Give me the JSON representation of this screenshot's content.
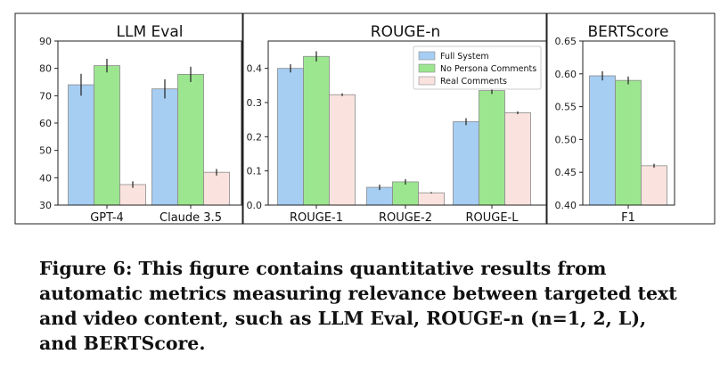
{
  "chart_data": [
    {
      "type": "bar",
      "title": "LLM Eval",
      "categories": [
        "GPT-4",
        "Claude 3.5"
      ],
      "ylim": [
        30,
        90
      ],
      "yticks": [
        "30",
        "40",
        "50",
        "60",
        "70",
        "80",
        "90"
      ],
      "series": [
        {
          "name": "Full System",
          "values": [
            74,
            72.5
          ],
          "errors": [
            4,
            3.5
          ]
        },
        {
          "name": "No Persona Comments",
          "values": [
            81,
            77.8
          ],
          "errors": [
            2.5,
            2.8
          ]
        },
        {
          "name": "Real Comments",
          "values": [
            37.5,
            42
          ],
          "errors": [
            1.2,
            1.2
          ]
        }
      ]
    },
    {
      "type": "bar",
      "title": "ROUGE-n",
      "categories": [
        "ROUGE-1",
        "ROUGE-2",
        "ROUGE-L"
      ],
      "ylim": [
        0,
        0.48
      ],
      "yticks": [
        "0.0",
        "0.1",
        "0.2",
        "0.3",
        "0.4"
      ],
      "legend": "top-right",
      "series": [
        {
          "name": "Full System",
          "values": [
            0.4,
            0.052,
            0.244
          ],
          "errors": [
            0.012,
            0.008,
            0.01
          ]
        },
        {
          "name": "No Persona Comments",
          "values": [
            0.435,
            0.068,
            0.335
          ],
          "errors": [
            0.015,
            0.008,
            0.01
          ]
        },
        {
          "name": "Real Comments",
          "values": [
            0.323,
            0.036,
            0.27
          ],
          "errors": [
            0.004,
            0.002,
            0.004
          ]
        }
      ]
    },
    {
      "type": "bar",
      "title": "BERTScore",
      "categories": [
        "F1"
      ],
      "ylim": [
        0.4,
        0.65
      ],
      "yticks": [
        "0.40",
        "0.45",
        "0.50",
        "0.55",
        "0.60",
        "0.65"
      ],
      "series": [
        {
          "name": "Full System",
          "values": [
            0.597
          ],
          "errors": [
            0.007
          ]
        },
        {
          "name": "No Persona Comments",
          "values": [
            0.59
          ],
          "errors": [
            0.006
          ]
        },
        {
          "name": "Real Comments",
          "values": [
            0.46
          ],
          "errors": [
            0.003
          ]
        }
      ]
    }
  ],
  "colors": {
    "Full System": "#a6cdf2",
    "No Persona Comments": "#9ce68f",
    "Real Comments": "#fae3df",
    "bar_edge": "#8a8a8a",
    "error_bar": "#222222"
  },
  "caption": "Figure 6: This figure contains quantitative results from automatic metrics measuring relevance between targeted text and video content, such as LLM Eval, ROUGE-n (n=1, 2, L), and BERTScore."
}
